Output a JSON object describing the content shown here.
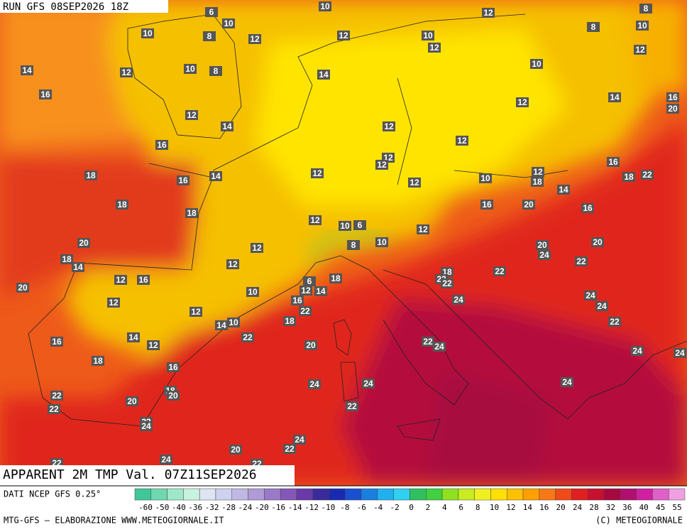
{
  "header": {
    "run": "RUN GFS 08SEP2026 18Z"
  },
  "map": {
    "title": "APPARENT 2M TMP Val. 07Z11SEP2026",
    "labels": [
      6,
      10,
      12,
      8,
      10,
      10,
      8,
      12,
      12,
      10,
      12,
      8,
      10,
      12,
      14,
      12,
      10,
      8,
      14,
      10,
      16,
      12,
      14,
      12,
      12,
      14,
      16,
      20,
      16,
      12,
      12,
      12,
      18,
      16,
      14,
      12,
      12,
      10,
      12,
      18,
      14,
      16,
      18,
      22,
      18,
      18,
      12,
      10,
      6,
      12,
      16,
      20,
      16,
      20,
      12,
      10,
      8,
      20,
      24,
      20,
      18,
      14,
      12,
      18,
      18,
      22,
      22,
      22,
      22,
      20,
      12,
      16,
      6,
      12,
      14,
      12,
      10,
      16,
      22,
      24,
      24,
      24,
      12,
      14,
      10,
      18,
      22,
      22,
      14,
      12,
      16,
      20,
      22,
      24,
      24,
      18,
      16,
      24,
      24,
      24,
      24,
      18,
      20,
      22,
      22,
      20,
      22,
      22,
      24,
      24,
      20,
      22,
      24,
      22,
      22
    ]
  },
  "legend": {
    "source": "DATI NCEP GFS 0.25°",
    "labels": [
      "-60",
      "-50",
      "-40",
      "-36",
      "-32",
      "-28",
      "-24",
      "-20",
      "-16",
      "-14",
      "-12",
      "-10",
      "-8",
      "-6",
      "-4",
      "-2",
      "0",
      "2",
      "4",
      "6",
      "8",
      "10",
      "12",
      "14",
      "16",
      "20",
      "24",
      "28",
      "32",
      "36",
      "40",
      "45",
      "55"
    ],
    "colors": [
      "#3fc79a",
      "#6fd8b0",
      "#9ee8c8",
      "#c8f2e0",
      "#dfe4f2",
      "#cfd2ee",
      "#c0b8e4",
      "#b09ad8",
      "#9a7ac8",
      "#8458b8",
      "#6a3aa8",
      "#3a2a9a",
      "#1a2ab0",
      "#1a50d0",
      "#1a80e0",
      "#20b0f0",
      "#30d0f0",
      "#30c060",
      "#40d040",
      "#90e020",
      "#c8ec20",
      "#f0f020",
      "#ffe000",
      "#ffc000",
      "#ffa000",
      "#f87818",
      "#f04a18",
      "#e02020",
      "#c81030",
      "#a80840",
      "#b01070",
      "#d020a0",
      "#e060c8",
      "#f0a0e0"
    ]
  },
  "footer": {
    "left": "MTG-GFS — ELABORAZIONE WWW.METEOGIORNALE.IT",
    "right": "(C) METEOGIORNALE"
  }
}
